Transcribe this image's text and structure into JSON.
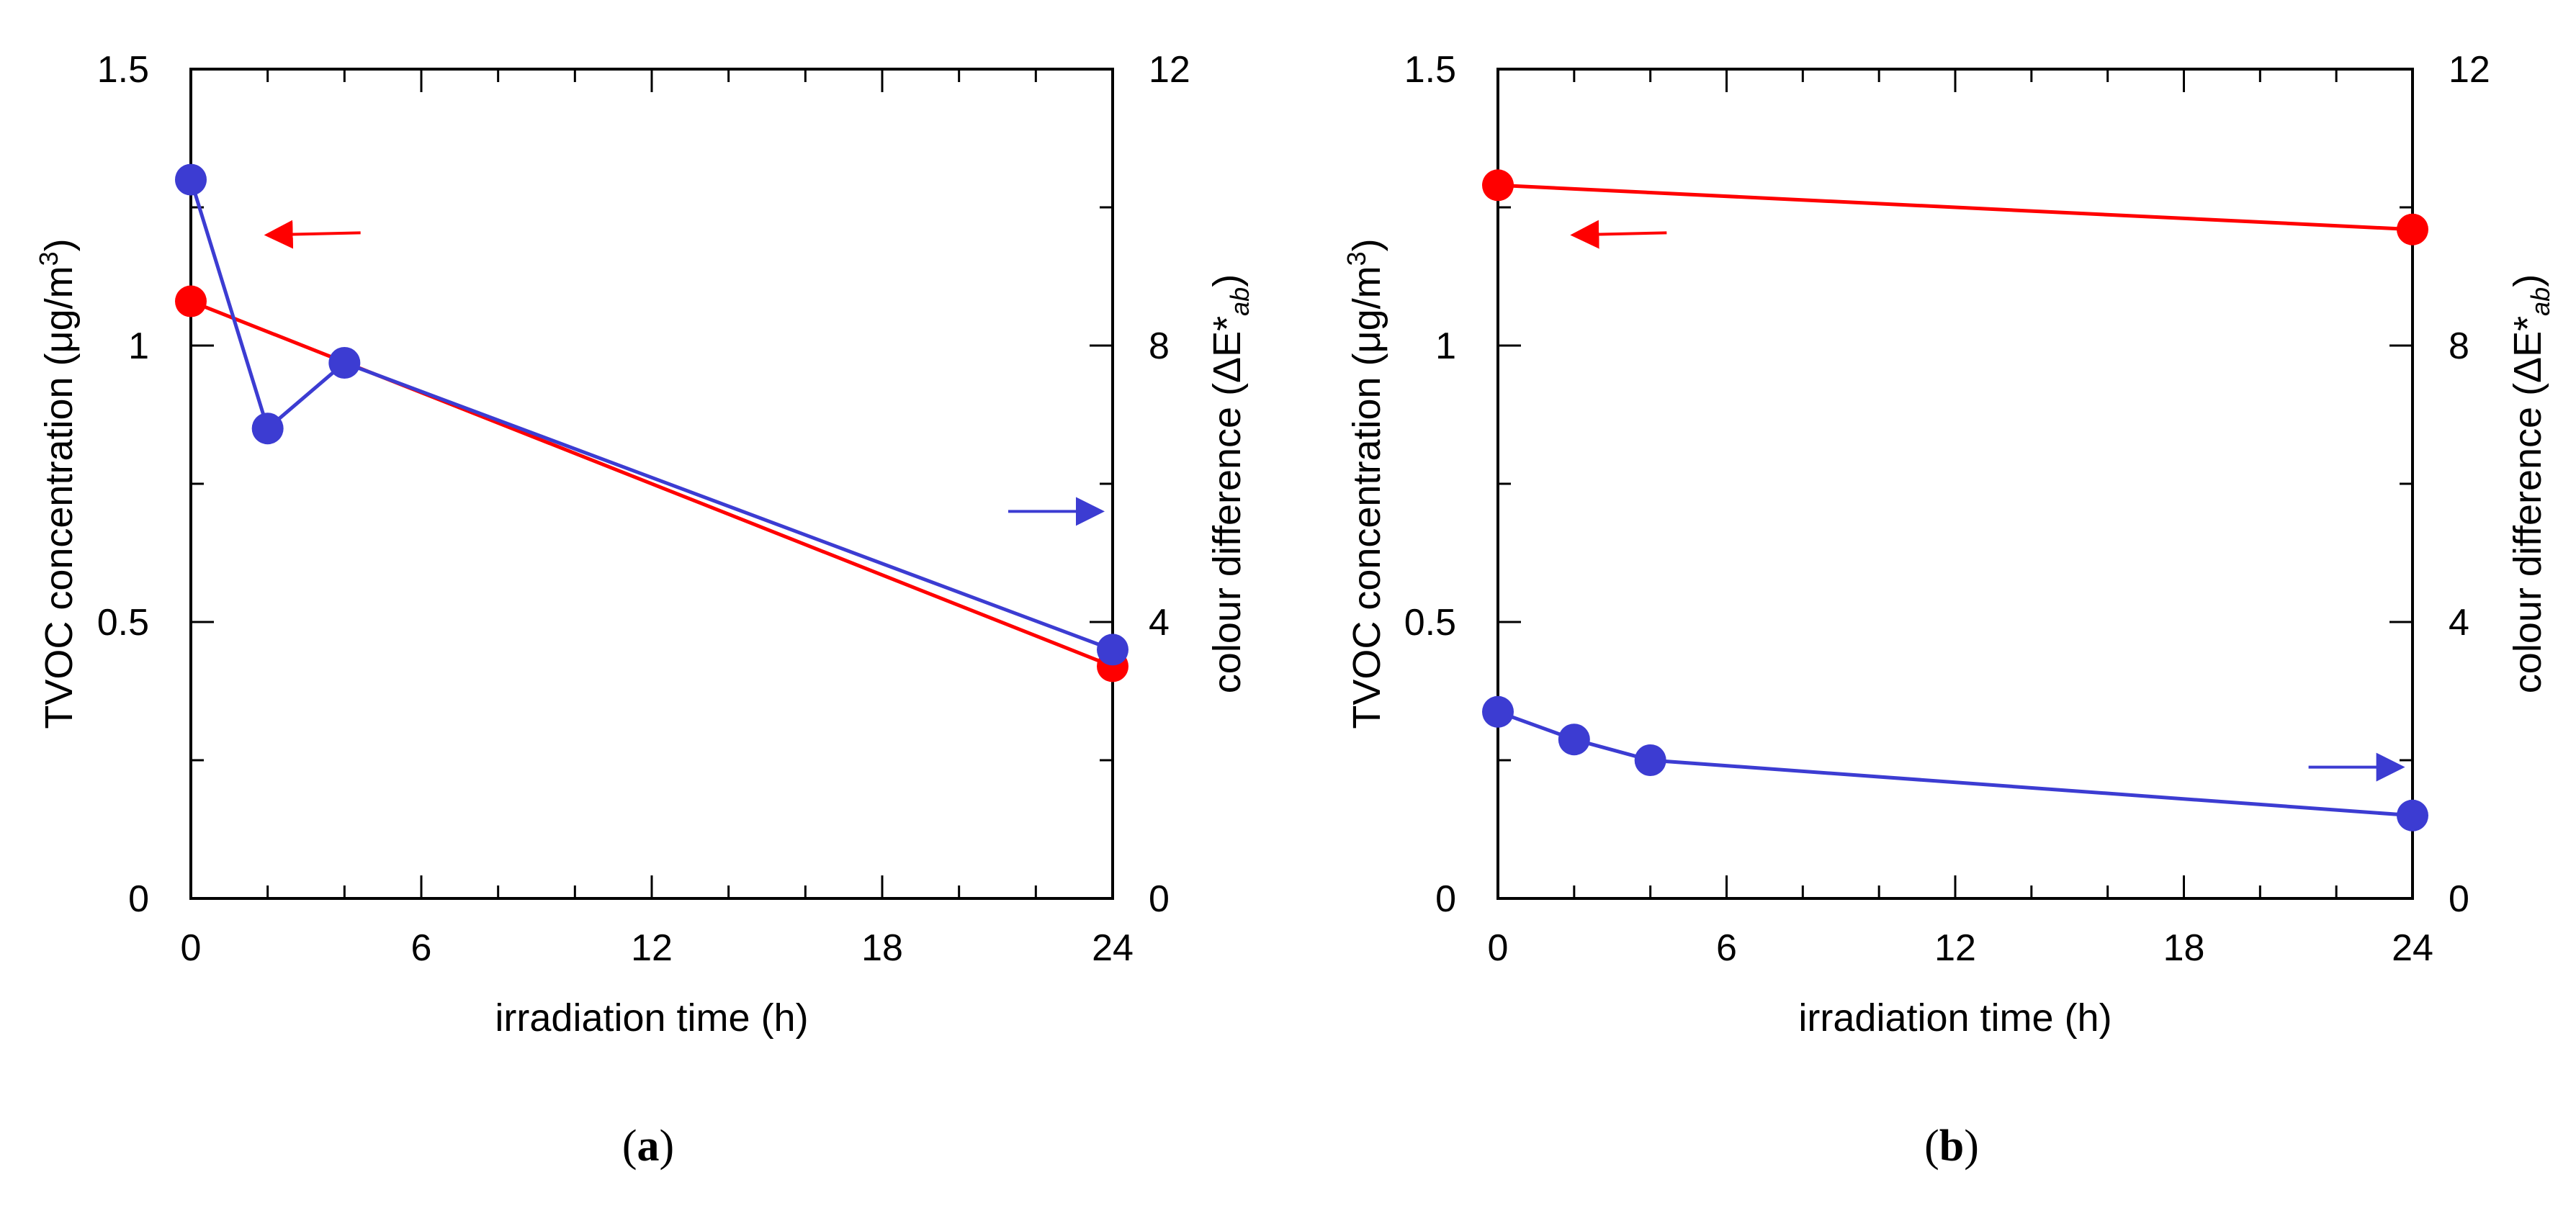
{
  "chart_data": [
    {
      "type": "line",
      "panel_label": "a",
      "xlabel": "irradiation time (h)",
      "ylabel_left": "TVOC concentration (μg/m",
      "ylabel_left_sup": "3",
      "ylabel_left_tail": ")",
      "ylabel_right": "colour difference (ΔE*",
      "ylabel_right_sub": "ab",
      "ylabel_right_tail": ")",
      "xlim": [
        0,
        24
      ],
      "xticks": [
        0,
        6,
        12,
        18,
        24
      ],
      "xtick_labels": [
        "0",
        "6",
        "12",
        "18",
        "24"
      ],
      "ylim_left": [
        0,
        1.5
      ],
      "yticks_left": [
        0,
        0.5,
        1,
        1.5
      ],
      "ytick_labels_left": [
        "0",
        "0.5",
        "1",
        "1.5"
      ],
      "ylim_right": [
        0,
        12
      ],
      "yticks_right": [
        0,
        4,
        8,
        12
      ],
      "ytick_labels_right": [
        "0",
        "4",
        "8",
        "12"
      ],
      "grid": false,
      "series": [
        {
          "name": "TVOC concentration",
          "axis": "left",
          "color": "#ff0000",
          "x": [
            0,
            24
          ],
          "values": [
            1.08,
            0.42
          ]
        },
        {
          "name": "colour difference",
          "axis": "right",
          "color": "#3c3cd2",
          "x": [
            0,
            2,
            4,
            24
          ],
          "values": [
            10.4,
            6.8,
            7.75,
            3.6
          ]
        }
      ],
      "annotations": [
        {
          "type": "arrow",
          "direction": "left",
          "color": "#ff0000",
          "refers_to": "left axis",
          "x": 3.2,
          "y": 1.2
        },
        {
          "type": "arrow",
          "direction": "right",
          "color": "#3c3cd2",
          "refers_to": "right axis",
          "x": 22.5,
          "y": 5.6
        }
      ]
    },
    {
      "type": "line",
      "panel_label": "b",
      "xlabel": "irradiation time (h)",
      "ylabel_left": "TVOC concentration (μg/m",
      "ylabel_left_sup": "3",
      "ylabel_left_tail": ")",
      "ylabel_right": "colour difference (ΔE*",
      "ylabel_right_sub": "ab",
      "ylabel_right_tail": ")",
      "xlim": [
        0,
        24
      ],
      "xticks": [
        0,
        6,
        12,
        18,
        24
      ],
      "xtick_labels": [
        "0",
        "6",
        "12",
        "18",
        "24"
      ],
      "ylim_left": [
        0,
        1.5
      ],
      "yticks_left": [
        0,
        0.5,
        1,
        1.5
      ],
      "ytick_labels_left": [
        "0",
        "0.5",
        "1",
        "1.5"
      ],
      "ylim_right": [
        0,
        12
      ],
      "yticks_right": [
        0,
        4,
        8,
        12
      ],
      "ytick_labels_right": [
        "0",
        "4",
        "8",
        "12"
      ],
      "grid": false,
      "series": [
        {
          "name": "TVOC concentration",
          "axis": "left",
          "color": "#ff0000",
          "x": [
            0,
            24
          ],
          "values": [
            1.29,
            1.21
          ]
        },
        {
          "name": "colour difference",
          "axis": "right",
          "color": "#3c3cd2",
          "x": [
            0,
            2,
            4,
            24
          ],
          "values": [
            2.7,
            2.3,
            2.0,
            1.2
          ]
        }
      ],
      "annotations": [
        {
          "type": "arrow",
          "direction": "left",
          "color": "#ff0000",
          "refers_to": "left axis",
          "x": 3.2,
          "y": 1.2
        },
        {
          "type": "arrow",
          "direction": "right",
          "color": "#3c3cd2",
          "refers_to": "right axis",
          "x": 22.5,
          "y": 1.9
        }
      ]
    }
  ]
}
